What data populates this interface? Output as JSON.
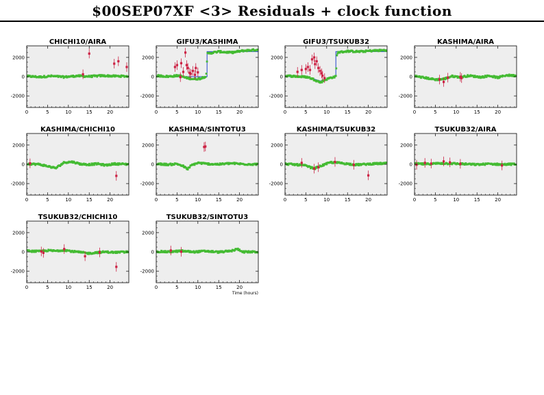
{
  "title": "$00SEP07XF <3> Residuals + clock function",
  "colors": {
    "panel_bg": "#eeeeee",
    "good_points": "#44bb33",
    "flagged_points": "#cc2244",
    "clock_function": "#2244cc"
  },
  "x_axis_label": "Time (hours)",
  "chart_data": [
    {
      "type": "scatter",
      "title": "CHICHI10/AIRA",
      "xlim": [
        0,
        24.5
      ],
      "ylim": [
        -3200,
        3200
      ],
      "x_ticks": [
        0,
        5,
        10,
        15,
        20
      ],
      "y_ticks": [
        -2000,
        0,
        2000
      ],
      "good_baseline": [
        [
          0,
          50
        ],
        [
          3,
          -30
        ],
        [
          6,
          60
        ],
        [
          9,
          -40
        ],
        [
          12,
          80
        ],
        [
          15,
          20
        ],
        [
          18,
          100
        ],
        [
          21,
          60
        ],
        [
          24.5,
          40
        ]
      ],
      "flagged_points": [
        [
          13.5,
          250
        ],
        [
          15,
          2400
        ],
        [
          21,
          1350
        ],
        [
          22,
          1600
        ],
        [
          24,
          1000
        ]
      ],
      "clock_function": null
    },
    {
      "type": "scatter",
      "title": "GIFU3/KASHIMA",
      "xlim": [
        0,
        24.5
      ],
      "ylim": [
        -3200,
        3200
      ],
      "x_ticks": [
        0,
        5,
        10,
        15,
        20
      ],
      "y_ticks": [
        -2000,
        0,
        2000
      ],
      "good_baseline": [
        [
          0,
          100
        ],
        [
          3,
          20
        ],
        [
          5.5,
          120
        ],
        [
          7,
          -100
        ],
        [
          9,
          -250
        ],
        [
          10.5,
          -200
        ],
        [
          12,
          50
        ],
        [
          12.3,
          2400
        ],
        [
          15,
          2600
        ],
        [
          18,
          2500
        ],
        [
          21,
          2700
        ],
        [
          24.5,
          2800
        ]
      ],
      "flagged_points": [
        [
          4.5,
          1000
        ],
        [
          5,
          1200
        ],
        [
          5.8,
          -50
        ],
        [
          6,
          1400
        ],
        [
          6.5,
          500
        ],
        [
          7,
          2500
        ],
        [
          7.3,
          1200
        ],
        [
          7.6,
          900
        ],
        [
          8,
          400
        ],
        [
          8.3,
          300
        ],
        [
          8.8,
          600
        ],
        [
          9.3,
          200
        ],
        [
          9.5,
          900
        ],
        [
          10,
          450
        ]
      ],
      "clock_function": [
        [
          0,
          0
        ],
        [
          12.2,
          0
        ],
        [
          12.2,
          2600
        ],
        [
          24.5,
          2600
        ]
      ]
    },
    {
      "type": "scatter",
      "title": "GIFU3/TSUKUB32",
      "xlim": [
        0,
        24.5
      ],
      "ylim": [
        -3200,
        3200
      ],
      "x_ticks": [
        0,
        5,
        10,
        15,
        20
      ],
      "y_ticks": [
        -2000,
        0,
        2000
      ],
      "good_baseline": [
        [
          0,
          100
        ],
        [
          3,
          20
        ],
        [
          5.5,
          -50
        ],
        [
          7,
          -300
        ],
        [
          8.5,
          -600
        ],
        [
          9.5,
          -350
        ],
        [
          11,
          -100
        ],
        [
          12.2,
          0
        ],
        [
          12.5,
          2500
        ],
        [
          15,
          2650
        ],
        [
          18,
          2600
        ],
        [
          21,
          2700
        ],
        [
          24.5,
          2750
        ]
      ],
      "flagged_points": [
        [
          3,
          500
        ],
        [
          4,
          700
        ],
        [
          5,
          800
        ],
        [
          5.5,
          1000
        ],
        [
          6,
          700
        ],
        [
          6.5,
          1800
        ],
        [
          7,
          2000
        ],
        [
          7.2,
          1300
        ],
        [
          7.6,
          1600
        ],
        [
          8,
          900
        ],
        [
          8.4,
          600
        ],
        [
          8.8,
          350
        ],
        [
          9,
          100
        ],
        [
          9.5,
          -150
        ]
      ],
      "clock_function": [
        [
          0,
          0
        ],
        [
          4.5,
          0
        ],
        [
          7,
          -250
        ],
        [
          8.5,
          -450
        ],
        [
          10,
          -250
        ],
        [
          12.2,
          0
        ],
        [
          12.2,
          2600
        ],
        [
          24.5,
          2600
        ]
      ]
    },
    {
      "type": "scatter",
      "title": "KASHIMA/AIRA",
      "xlim": [
        0,
        24.5
      ],
      "ylim": [
        -3200,
        3200
      ],
      "x_ticks": [
        0,
        5,
        10,
        15,
        20
      ],
      "y_ticks": [
        -2000,
        0,
        2000
      ],
      "good_baseline": [
        [
          0,
          60
        ],
        [
          3,
          -150
        ],
        [
          5,
          -300
        ],
        [
          7,
          -250
        ],
        [
          9,
          50
        ],
        [
          11,
          -50
        ],
        [
          13,
          100
        ],
        [
          16,
          -50
        ],
        [
          18,
          100
        ],
        [
          20,
          -100
        ],
        [
          22,
          150
        ],
        [
          24.5,
          100
        ]
      ],
      "flagged_points": [
        [
          6,
          -300
        ],
        [
          7,
          -550
        ],
        [
          8,
          -100
        ],
        [
          11,
          -20
        ],
        [
          11.3,
          -150
        ]
      ],
      "clock_function": null
    },
    {
      "type": "scatter",
      "title": "KASHIMA/CHICHI10",
      "xlim": [
        0,
        24.5
      ],
      "ylim": [
        -3200,
        3200
      ],
      "x_ticks": [
        0,
        5,
        10,
        15,
        20
      ],
      "y_ticks": [
        -2000,
        0,
        2000
      ],
      "good_baseline": [
        [
          0,
          50
        ],
        [
          3,
          0
        ],
        [
          5,
          -200
        ],
        [
          7,
          -400
        ],
        [
          9,
          200
        ],
        [
          11,
          250
        ],
        [
          13,
          20
        ],
        [
          15,
          -20
        ],
        [
          17,
          50
        ],
        [
          19,
          -100
        ],
        [
          21,
          50
        ],
        [
          24.5,
          0
        ]
      ],
      "flagged_points": [
        [
          0.8,
          100
        ],
        [
          21.5,
          -1200
        ]
      ],
      "clock_function": null
    },
    {
      "type": "scatter",
      "title": "KASHIMA/SINTOTU3",
      "xlim": [
        0,
        24.5
      ],
      "ylim": [
        -3200,
        3200
      ],
      "x_ticks": [
        0,
        5,
        10,
        15,
        20
      ],
      "y_ticks": [
        -2000,
        0,
        2000
      ],
      "good_baseline": [
        [
          0,
          50
        ],
        [
          3,
          -30
        ],
        [
          5,
          50
        ],
        [
          6.5,
          -200
        ],
        [
          7.5,
          -500
        ],
        [
          8.5,
          -100
        ],
        [
          10,
          150
        ],
        [
          12,
          50
        ],
        [
          15,
          0
        ],
        [
          18,
          100
        ],
        [
          21,
          20
        ],
        [
          24.5,
          0
        ]
      ],
      "flagged_points": [
        [
          11.5,
          1800
        ],
        [
          11.8,
          1850
        ]
      ],
      "clock_function": null
    },
    {
      "type": "scatter",
      "title": "KASHIMA/TSUKUB32",
      "xlim": [
        0,
        24.5
      ],
      "ylim": [
        -3200,
        3200
      ],
      "x_ticks": [
        0,
        5,
        10,
        15,
        20
      ],
      "y_ticks": [
        -2000,
        0,
        2000
      ],
      "good_baseline": [
        [
          0,
          50
        ],
        [
          3,
          -50
        ],
        [
          5,
          -150
        ],
        [
          7,
          -450
        ],
        [
          9,
          -100
        ],
        [
          11,
          200
        ],
        [
          13,
          150
        ],
        [
          15,
          50
        ],
        [
          17,
          -50
        ],
        [
          19,
          0
        ],
        [
          21,
          50
        ],
        [
          24.5,
          100
        ]
      ],
      "flagged_points": [
        [
          4,
          150
        ],
        [
          7,
          -450
        ],
        [
          8,
          -300
        ],
        [
          12,
          250
        ],
        [
          16.5,
          -50
        ],
        [
          20,
          -1150
        ]
      ],
      "clock_function": null
    },
    {
      "type": "scatter",
      "title": "TSUKUB32/AIRA",
      "xlim": [
        0,
        24.5
      ],
      "ylim": [
        -3200,
        3200
      ],
      "x_ticks": [
        0,
        5,
        10,
        15,
        20
      ],
      "y_ticks": [
        -2000,
        0,
        2000
      ],
      "good_baseline": [
        [
          0,
          50
        ],
        [
          3,
          20
        ],
        [
          6,
          100
        ],
        [
          9,
          80
        ],
        [
          12,
          30
        ],
        [
          15,
          -30
        ],
        [
          18,
          40
        ],
        [
          21,
          -20
        ],
        [
          24.5,
          30
        ]
      ],
      "flagged_points": [
        [
          0.5,
          -50
        ],
        [
          2.5,
          150
        ],
        [
          4,
          80
        ],
        [
          7,
          300
        ],
        [
          8.5,
          200
        ],
        [
          11,
          50
        ],
        [
          21,
          -120
        ]
      ],
      "clock_function": null
    },
    {
      "type": "scatter",
      "title": "TSUKUB32/CHICHI10",
      "xlim": [
        0,
        24.5
      ],
      "ylim": [
        -3200,
        3200
      ],
      "x_ticks": [
        0,
        5,
        10,
        15,
        20
      ],
      "y_ticks": [
        -2000,
        0,
        2000
      ],
      "good_baseline": [
        [
          0,
          100
        ],
        [
          3,
          50
        ],
        [
          5,
          150
        ],
        [
          7,
          100
        ],
        [
          9,
          200
        ],
        [
          11,
          50
        ],
        [
          13,
          -50
        ],
        [
          15,
          -150
        ],
        [
          17,
          -50
        ],
        [
          19,
          0
        ],
        [
          21,
          -50
        ],
        [
          24.5,
          0
        ]
      ],
      "flagged_points": [
        [
          3.5,
          50
        ],
        [
          4,
          -100
        ],
        [
          9,
          300
        ],
        [
          14,
          -450
        ],
        [
          17.5,
          -50
        ],
        [
          21.5,
          -1550
        ]
      ],
      "clock_function": null
    },
    {
      "type": "scatter",
      "title": "TSUKUB32/SINTOTU3",
      "xlim": [
        0,
        24.5
      ],
      "ylim": [
        -3200,
        3200
      ],
      "x_ticks": [
        0,
        5,
        10,
        15,
        20
      ],
      "y_ticks": [
        -2000,
        0,
        2000
      ],
      "good_baseline": [
        [
          0,
          50
        ],
        [
          3,
          0
        ],
        [
          6,
          100
        ],
        [
          9,
          0
        ],
        [
          12,
          80
        ],
        [
          15,
          -20
        ],
        [
          18,
          100
        ],
        [
          19.5,
          300
        ],
        [
          21,
          0
        ],
        [
          24.5,
          0
        ]
      ],
      "flagged_points": [
        [
          3.5,
          150
        ],
        [
          6,
          20
        ]
      ],
      "clock_function": null
    }
  ]
}
